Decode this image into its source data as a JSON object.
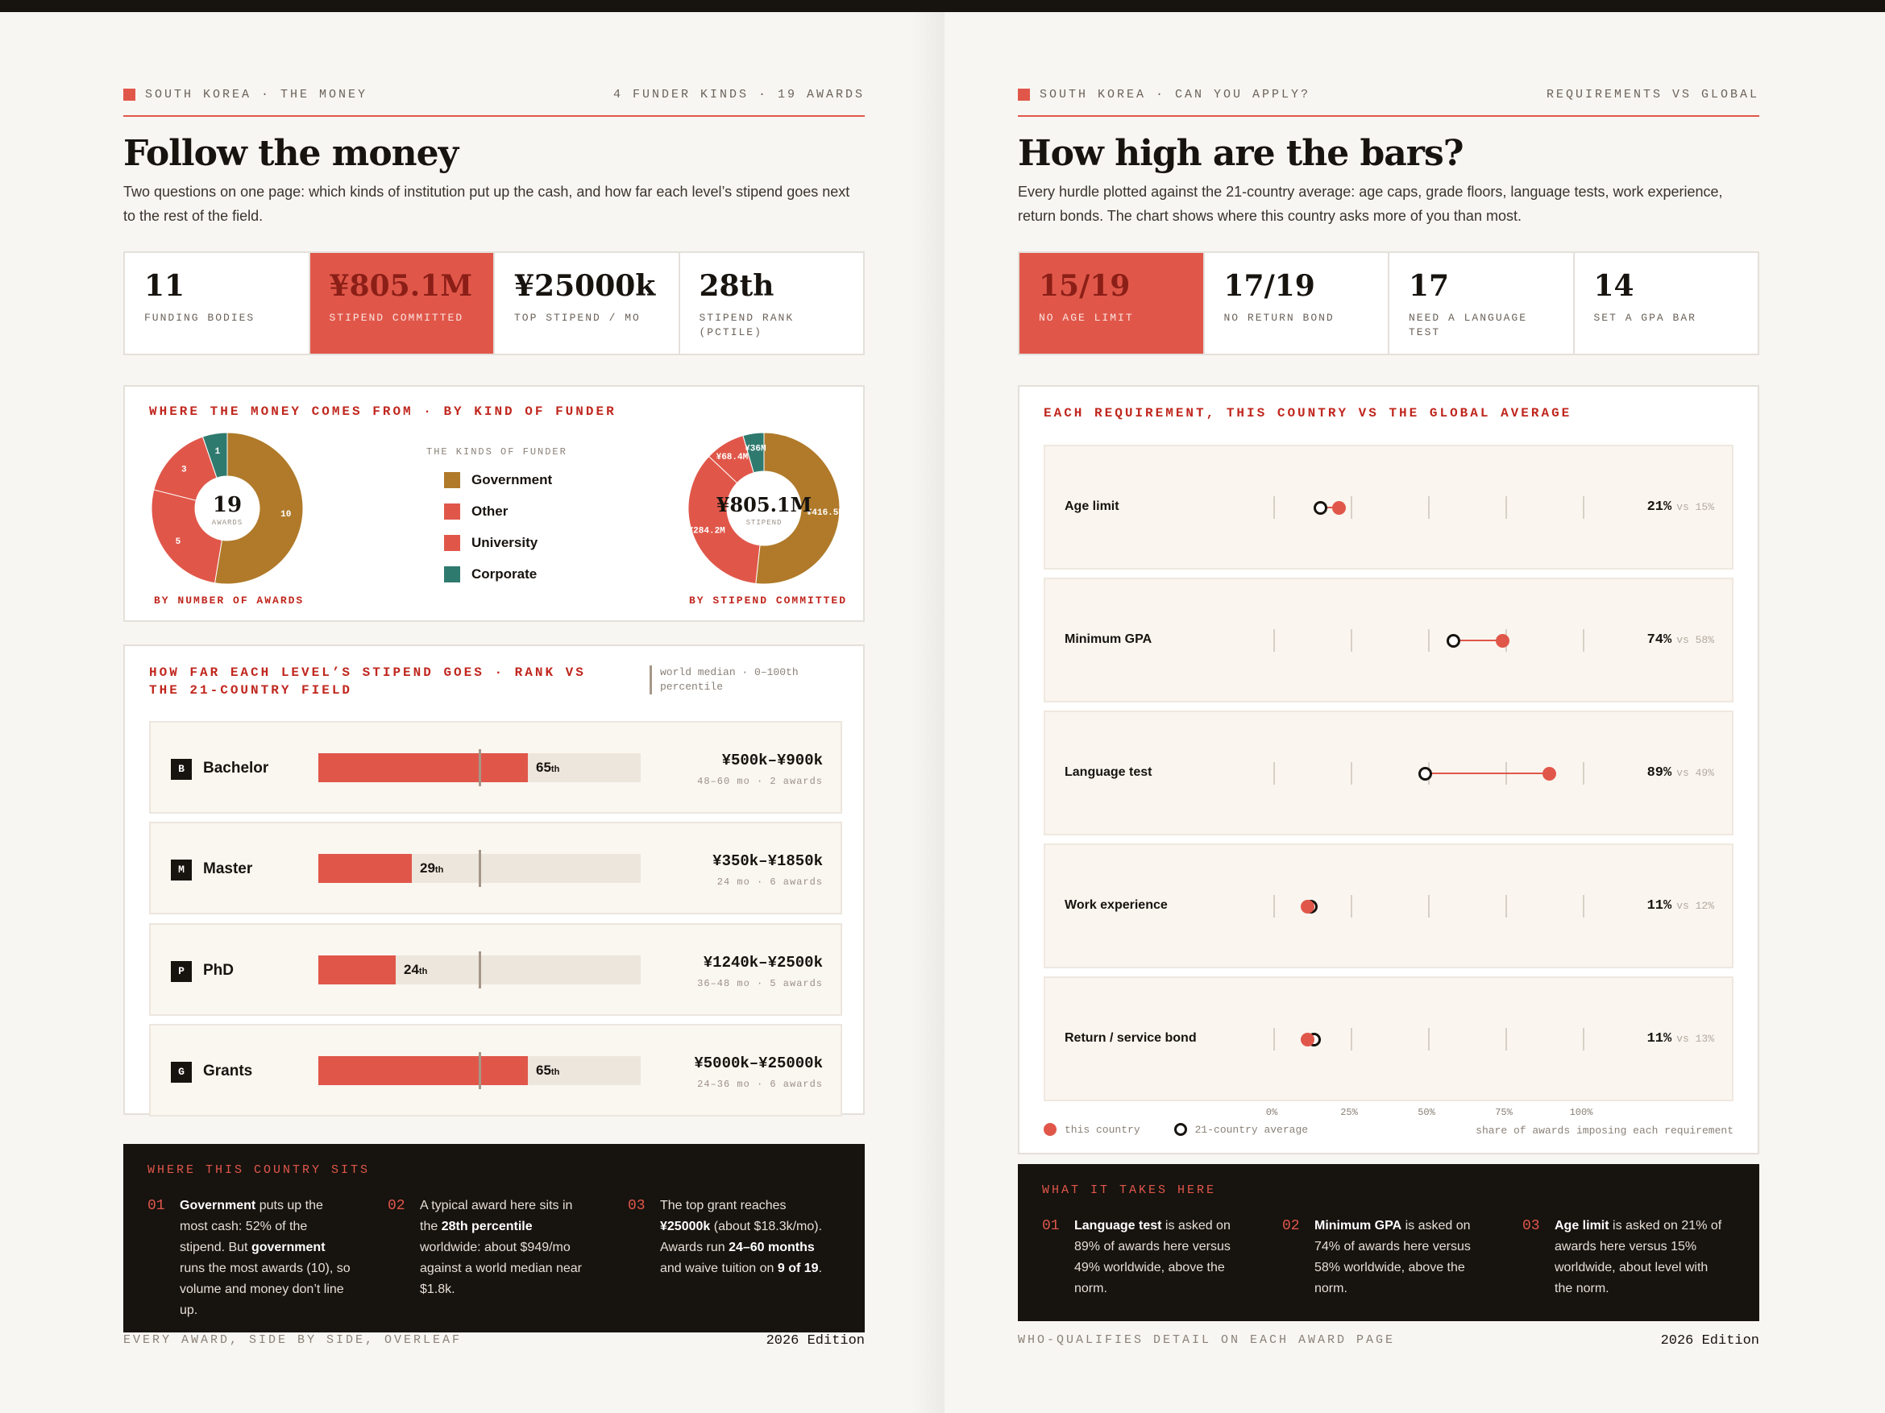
{
  "left": {
    "runhead_left": "SOUTH KOREA · THE MONEY",
    "runhead_right": "4 FUNDER KINDS · 19 AWARDS",
    "title": "Follow the money",
    "lede": "Two questions on one page: which kinds of institution put up the cash, and how far each level’s stipend goes next to the rest of the field.",
    "stats": [
      {
        "value": "11",
        "label": "FUNDING BODIES"
      },
      {
        "value": "¥805.1M",
        "label": "STIPEND COMMITTED"
      },
      {
        "value": "¥25000k",
        "label": "TOP STIPEND / MO"
      },
      {
        "value": "28th",
        "label": "STIPEND RANK (PCTILE)"
      }
    ],
    "funder_card": {
      "title": "WHERE THE MONEY COMES FROM · BY KIND OF FUNDER",
      "awards_center_value": "19",
      "awards_center_label": "AWARDS",
      "awards_caption": "BY NUMBER OF AWARDS",
      "stipend_center_value": "¥805.1M",
      "stipend_center_label": "STIPEND",
      "stipend_caption": "BY STIPEND COMMITTED",
      "legend_title": "THE KINDS OF FUNDER",
      "legend": [
        "Government",
        "Other",
        "University",
        "Corporate"
      ]
    },
    "stipend_card": {
      "title": "HOW FAR EACH LEVEL’S STIPEND GOES · RANK VS THE 21-COUNTRY FIELD",
      "note": "world median · 0–100th percentile",
      "rows": [
        {
          "badge": "B",
          "name": "Bachelor",
          "pct": "65",
          "suffix": "th",
          "amount": "¥500k–¥900k",
          "meta": "48–60 mo · 2 awards"
        },
        {
          "badge": "M",
          "name": "Master",
          "pct": "29",
          "suffix": "th",
          "amount": "¥350k–¥1850k",
          "meta": "24 mo · 6 awards"
        },
        {
          "badge": "P",
          "name": "PhD",
          "pct": "24",
          "suffix": "th",
          "amount": "¥1240k–¥2500k",
          "meta": "36–48 mo · 5 awards"
        },
        {
          "badge": "G",
          "name": "Grants",
          "pct": "65",
          "suffix": "th",
          "amount": "¥5000k–¥25000k",
          "meta": "24–36 mo · 6 awards"
        }
      ]
    },
    "dark": {
      "title": "WHERE THIS COUNTRY SITS",
      "items": [
        {
          "n": "01",
          "html": "<b>Government</b> puts up the most cash: 52% of the stipend. But <b>government</b> runs the most awards (10), so volume and money don’t line up."
        },
        {
          "n": "02",
          "html": "A typical award here sits in the <b>28th percentile</b> worldwide: about $949/mo against a world median near $1.8k."
        },
        {
          "n": "03",
          "html": "The top grant reaches <b>¥25000k</b> (about $18.3k/mo). Awards run <b>24–60 months</b> and waive tuition on <b>9 of 19</b>."
        }
      ]
    },
    "footer_left": "EVERY AWARD, SIDE BY SIDE, OVERLEAF",
    "footer_right": "2026 Edition"
  },
  "right": {
    "runhead_left": "SOUTH KOREA · CAN YOU APPLY?",
    "runhead_right": "REQUIREMENTS VS GLOBAL",
    "title": "How high are the bars?",
    "lede": "Every hurdle plotted against the 21-country average: age caps, grade floors, language tests, work experience, return bonds. The chart shows where this country asks more of you than most.",
    "stats": [
      {
        "value": "15/19",
        "label": "NO AGE LIMIT"
      },
      {
        "value": "17/19",
        "label": "NO RETURN BOND"
      },
      {
        "value": "17",
        "label": "NEED A LANGUAGE TEST"
      },
      {
        "value": "14",
        "label": "SET A GPA BAR"
      }
    ],
    "req_card": {
      "title": "EACH REQUIREMENT, THIS COUNTRY VS THE GLOBAL AVERAGE",
      "axis": [
        "0%",
        "25%",
        "50%",
        "75%",
        "100%"
      ],
      "legend_country": "this country",
      "legend_avg": "21-country average",
      "axis_note": "share of awards imposing each requirement"
    },
    "dark": {
      "title": "WHAT IT TAKES HERE",
      "items": [
        {
          "n": "01",
          "html": "<b>Language test</b> is asked on 89% of awards here versus 49% worldwide, above the norm."
        },
        {
          "n": "02",
          "html": "<b>Minimum GPA</b> is asked on 74% of awards here versus 58% worldwide, above the norm."
        },
        {
          "n": "03",
          "html": "<b>Age limit</b> is asked on 21% of awards here versus 15% worldwide, about level with the norm."
        }
      ]
    },
    "footer_left": "WHO-QUALIFIES DETAIL ON EACH AWARD PAGE",
    "footer_right": "2026 Edition"
  },
  "colors": {
    "accent": "#e0574a",
    "government": "#b07a2a",
    "other": "#e0574a",
    "university": "#e0574a",
    "corporate": "#2f7a6e",
    "ink": "#17130f"
  },
  "chart_data": [
    {
      "type": "pie",
      "title": "BY NUMBER OF AWARDS",
      "categories": [
        "Government",
        "Other",
        "University",
        "Corporate"
      ],
      "values": [
        10,
        5,
        3,
        1
      ],
      "colors": [
        "#b07a2a",
        "#e0574a",
        "#e0574a",
        "#2f7a6e"
      ]
    },
    {
      "type": "pie",
      "title": "BY STIPEND COMMITTED",
      "categories": [
        "Government",
        "Other",
        "University",
        "Corporate"
      ],
      "values": [
        416.5,
        284.2,
        68.4,
        36
      ],
      "value_labels": [
        "¥416.5M",
        "¥284.2M",
        "¥68.4M",
        "¥36M"
      ],
      "colors": [
        "#b07a2a",
        "#e0574a",
        "#e0574a",
        "#2f7a6e"
      ]
    },
    {
      "type": "bar",
      "title": "HOW FAR EACH LEVEL’S STIPEND GOES · RANK VS THE 21-COUNTRY FIELD",
      "categories": [
        "Bachelor",
        "Master",
        "PhD",
        "Grants"
      ],
      "values": [
        65,
        29,
        24,
        65
      ],
      "reference": 50,
      "xlim": [
        0,
        100
      ]
    },
    {
      "type": "scatter",
      "title": "EACH REQUIREMENT, THIS COUNTRY VS THE GLOBAL AVERAGE",
      "categories": [
        "Age limit",
        "Minimum GPA",
        "Language test",
        "Work experience",
        "Return / service bond"
      ],
      "series": [
        {
          "name": "this country",
          "values": [
            21,
            74,
            89,
            11,
            11
          ]
        },
        {
          "name": "21-country average",
          "values": [
            15,
            58,
            49,
            12,
            13
          ]
        }
      ],
      "xlim": [
        0,
        100
      ],
      "xlabel": "share of awards imposing each requirement"
    }
  ]
}
